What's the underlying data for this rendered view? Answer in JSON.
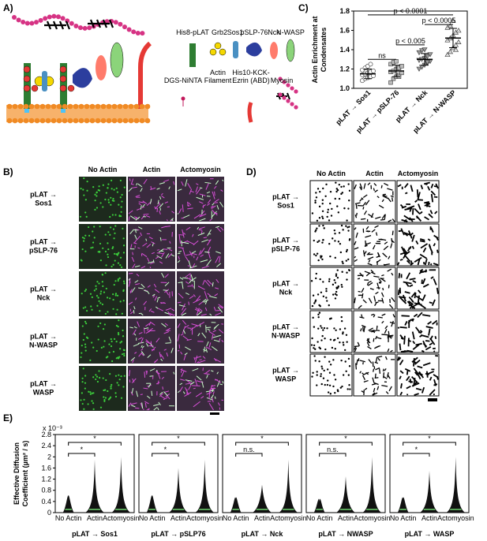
{
  "panel_labels": {
    "a": "A)",
    "b": "B)",
    "c": "C)",
    "d": "D)",
    "e": "E)"
  },
  "schematic": {
    "legend": [
      [
        "His8-pLAT"
      ],
      [
        "Grb2"
      ],
      [
        "Sos1"
      ],
      [
        "pSLP-76"
      ],
      [
        "Nck"
      ],
      [
        "N-WASP"
      ],
      [
        "DGS-NiNTA"
      ],
      [
        "Actin",
        "Filament"
      ],
      [
        "His10-KCK-",
        "Ezrin (ABD)"
      ],
      [
        "Myosin"
      ]
    ]
  },
  "images_b": {
    "columns": [
      "No Actin",
      "Actin",
      "Actomyosin"
    ],
    "rows": [
      [
        "pLAT →",
        "Sos1"
      ],
      [
        "pLAT →",
        "pSLP-76"
      ],
      [
        "pLAT →",
        "Nck"
      ],
      [
        "pLAT →",
        "N-WASP"
      ],
      [
        "pLAT →",
        "WASP"
      ]
    ]
  },
  "images_d": {
    "columns": [
      "No Actin",
      "Actin",
      "Actomyosin"
    ],
    "rows": [
      [
        "pLAT →",
        "Sos1"
      ],
      [
        "pLAT →",
        "pSLP-76"
      ],
      [
        "pLAT →",
        "Nck"
      ],
      [
        "pLAT →",
        "N-WASP"
      ],
      [
        "pLAT →",
        "WASP"
      ]
    ]
  },
  "chart_data": [
    {
      "type": "dotplot",
      "ylabel": [
        "Actin Enrichment at",
        "Condensates"
      ],
      "categories": [
        "pLAT → Sos1",
        "pLAT → pSLP-76",
        "pLAT → Nck",
        "pLAT → N-WASP"
      ],
      "points": [
        [
          1.08,
          1.1,
          1.11,
          1.12,
          1.13,
          1.14,
          1.15,
          1.16,
          1.17,
          1.18,
          1.19,
          1.21,
          1.23,
          1.25
        ],
        [
          1.06,
          1.1,
          1.12,
          1.14,
          1.16,
          1.17,
          1.18,
          1.2,
          1.21,
          1.23,
          1.25,
          1.27,
          1.28,
          1.12
        ],
        [
          1.2,
          1.22,
          1.24,
          1.26,
          1.28,
          1.29,
          1.3,
          1.31,
          1.33,
          1.35,
          1.37,
          1.39,
          1.4,
          1.27
        ],
        [
          1.35,
          1.38,
          1.42,
          1.45,
          1.48,
          1.5,
          1.52,
          1.55,
          1.58,
          1.6,
          1.63,
          1.65,
          1.7,
          1.4
        ]
      ],
      "means": [
        1.15,
        1.18,
        1.3,
        1.52
      ],
      "sd": [
        0.05,
        0.06,
        0.06,
        0.1
      ],
      "markers": [
        "circle",
        "square",
        "triangle-down",
        "triangle-up"
      ],
      "colors": [
        "#ffffff",
        "#bdbdbd",
        "#9a9a9a",
        "#dcdcdc"
      ],
      "ylim": [
        1,
        1.8
      ],
      "yticks": [
        {
          "value": 1,
          "label": "1.0"
        },
        {
          "value": 1.2,
          "label": "1.2"
        },
        {
          "value": 1.4,
          "label": "1.4"
        },
        {
          "value": 1.6,
          "label": "1.6"
        },
        {
          "value": 1.8,
          "label": "1.8"
        }
      ],
      "annotations": [
        "ns",
        "p < 0.005",
        "p < 0.0001",
        "p < 0.0005"
      ]
    },
    {
      "type": "violin",
      "title": "pLAT → Sos1",
      "multiplier": "x 10⁻³",
      "ylabel": [
        "Effective Diffusion",
        "Coefficient (µm² / s)"
      ],
      "categories": [
        "No Actin",
        "Actin",
        "Actomyosin"
      ],
      "values": [
        0.6,
        1.9,
        2.0
      ],
      "ylim": [
        0,
        2.8
      ],
      "yticks": [
        0,
        0.4,
        0.8,
        1.2,
        1.6,
        2,
        2.4,
        2.8
      ],
      "annotations": [
        "*",
        "*"
      ]
    },
    {
      "type": "violin",
      "title": "pLAT → pSLP76",
      "categories": [
        "No Actin",
        "Actin",
        "Actomyosin"
      ],
      "values": [
        0.6,
        1.6,
        1.9
      ],
      "ylim": [
        0,
        2.8
      ],
      "annotations": [
        "*",
        "*"
      ]
    },
    {
      "type": "violin",
      "title": "pLAT → Nck",
      "categories": [
        "No Actin",
        "Actin",
        "Actomyosin"
      ],
      "values": [
        0.5,
        1.0,
        1.9
      ],
      "ylim": [
        0,
        2.8
      ],
      "annotations": [
        "n.s.",
        "*"
      ]
    },
    {
      "type": "violin",
      "title": "pLAT → NWASP",
      "categories": [
        "No Actin",
        "Actin",
        "Actomyosin"
      ],
      "values": [
        0.4,
        1.3,
        2.0
      ],
      "ylim": [
        0,
        2.8
      ],
      "annotations": [
        "n.s.",
        "*"
      ]
    },
    {
      "type": "violin",
      "title": "pLAT → WASP",
      "categories": [
        "No Actin",
        "Actin",
        "Actomyosin"
      ],
      "values": [
        0.5,
        1.5,
        2.0
      ],
      "ylim": [
        0,
        2.8
      ],
      "annotations": [
        "*",
        "*"
      ]
    }
  ]
}
